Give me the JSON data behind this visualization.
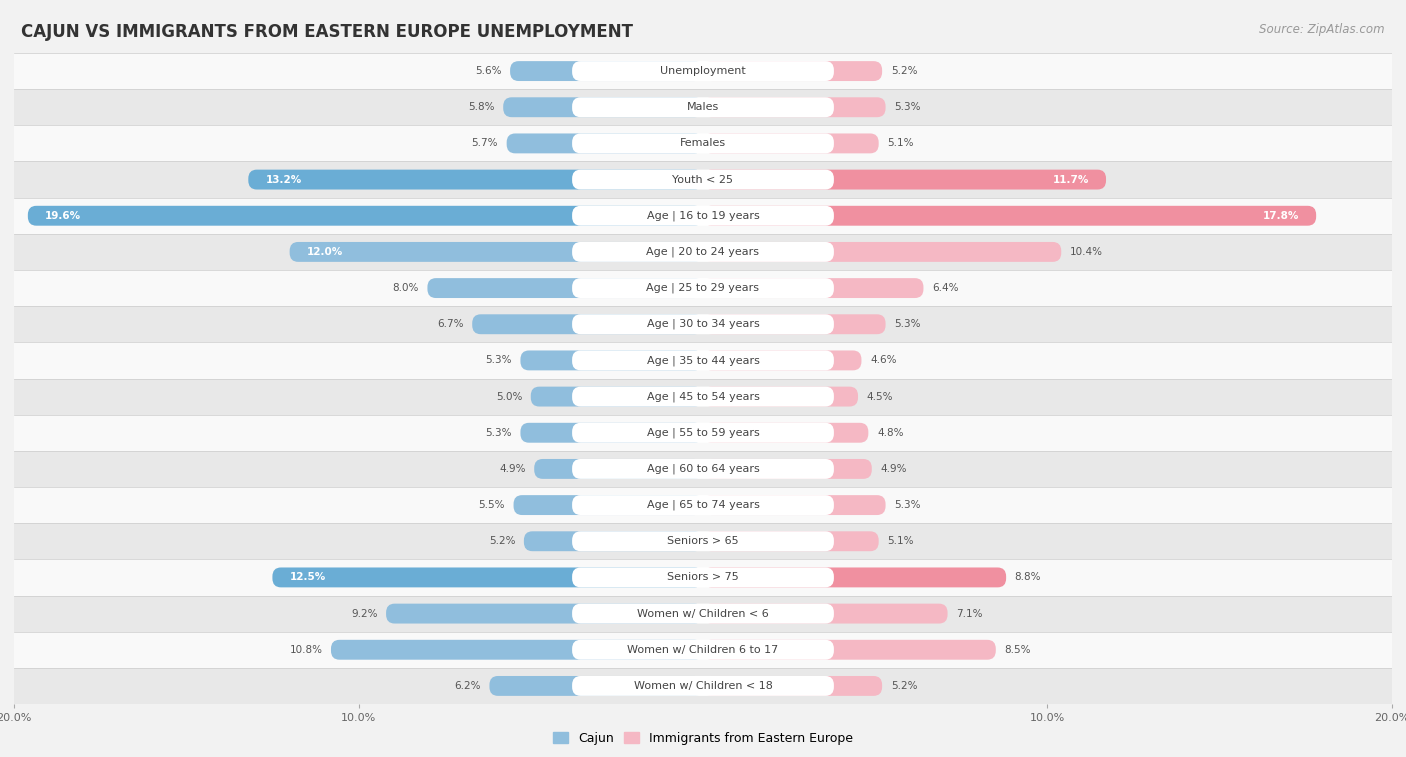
{
  "title": "CAJUN VS IMMIGRANTS FROM EASTERN EUROPE UNEMPLOYMENT",
  "source": "Source: ZipAtlas.com",
  "categories": [
    "Unemployment",
    "Males",
    "Females",
    "Youth < 25",
    "Age | 16 to 19 years",
    "Age | 20 to 24 years",
    "Age | 25 to 29 years",
    "Age | 30 to 34 years",
    "Age | 35 to 44 years",
    "Age | 45 to 54 years",
    "Age | 55 to 59 years",
    "Age | 60 to 64 years",
    "Age | 65 to 74 years",
    "Seniors > 65",
    "Seniors > 75",
    "Women w/ Children < 6",
    "Women w/ Children 6 to 17",
    "Women w/ Children < 18"
  ],
  "cajun_values": [
    5.6,
    5.8,
    5.7,
    13.2,
    19.6,
    12.0,
    8.0,
    6.7,
    5.3,
    5.0,
    5.3,
    4.9,
    5.5,
    5.2,
    12.5,
    9.2,
    10.8,
    6.2
  ],
  "eastern_europe_values": [
    5.2,
    5.3,
    5.1,
    11.7,
    17.8,
    10.4,
    6.4,
    5.3,
    4.6,
    4.5,
    4.8,
    4.9,
    5.3,
    5.1,
    8.8,
    7.1,
    8.5,
    5.2
  ],
  "cajun_color": "#90bedd",
  "eastern_europe_color": "#f5b8c4",
  "cajun_highlight_color": "#6aadd5",
  "eastern_europe_highlight_color": "#f090a0",
  "highlight_rows": [
    3,
    4,
    14
  ],
  "background_color": "#f2f2f2",
  "row_bg_even": "#f9f9f9",
  "row_bg_odd": "#e8e8e8",
  "axis_limit": 20.0,
  "legend_cajun": "Cajun",
  "legend_eastern_europe": "Immigrants from Eastern Europe",
  "title_fontsize": 12,
  "source_fontsize": 8.5,
  "label_fontsize": 8,
  "value_fontsize": 7.5,
  "legend_fontsize": 9,
  "axis_label_fontsize": 8
}
